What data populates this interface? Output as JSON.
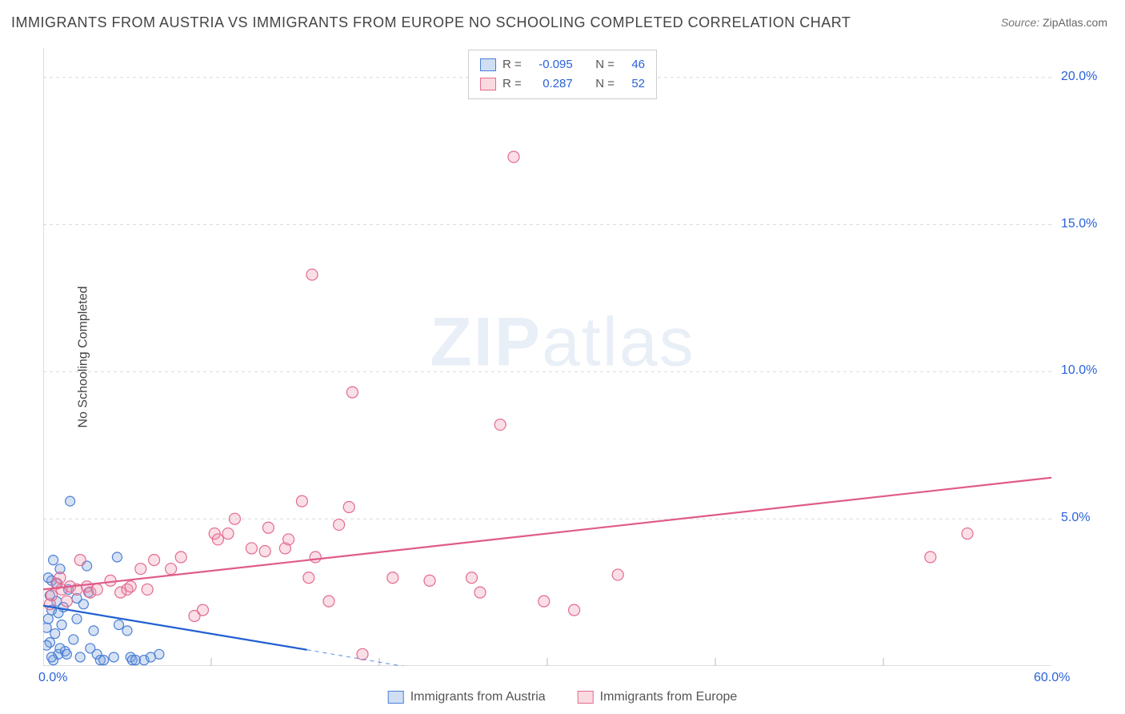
{
  "title": "IMMIGRANTS FROM AUSTRIA VS IMMIGRANTS FROM EUROPE NO SCHOOLING COMPLETED CORRELATION CHART",
  "source_label": "Source:",
  "source_value": "ZipAtlas.com",
  "ylabel": "No Schooling Completed",
  "watermark_a": "ZIP",
  "watermark_b": "atlas",
  "legend_top": {
    "rows": [
      {
        "swatch": "blue",
        "r_label": "R =",
        "r_value": "-0.095",
        "n_label": "N =",
        "n_value": "46"
      },
      {
        "swatch": "pink",
        "r_label": "R =",
        "r_value": "0.287",
        "n_label": "N =",
        "n_value": "52"
      }
    ]
  },
  "legend_bottom": {
    "items": [
      {
        "swatch": "blue",
        "label": "Immigrants from Austria"
      },
      {
        "swatch": "pink",
        "label": "Immigrants from Europe"
      }
    ]
  },
  "chart": {
    "type": "scatter",
    "xlim": [
      0,
      60
    ],
    "ylim": [
      0,
      21
    ],
    "x_ticks_minor": [
      10,
      20,
      30,
      40,
      50
    ],
    "x_ticks_labeled": [
      {
        "v": 0,
        "label": "0.0%"
      },
      {
        "v": 60,
        "label": "60.0%"
      }
    ],
    "y_gridlines": [
      5,
      10,
      15,
      20
    ],
    "y_ticks_labeled": [
      {
        "v": 5,
        "label": "5.0%"
      },
      {
        "v": 10,
        "label": "10.0%"
      },
      {
        "v": 15,
        "label": "15.0%"
      },
      {
        "v": 20,
        "label": "20.0%"
      }
    ],
    "grid_color": "#d9d9d9",
    "grid_dash": "4 4",
    "axis_color": "#bbbbbb",
    "background": "#ffffff",
    "marker_radius": 7,
    "marker_radius_small": 6,
    "marker_stroke_width": 1.2,
    "fontsize_ticks": 16,
    "series": [
      {
        "name": "austria",
        "fill": "rgba(120,160,220,0.30)",
        "stroke": "#4a7fd6",
        "points": [
          [
            0.4,
            2.4
          ],
          [
            0.6,
            3.6
          ],
          [
            0.8,
            2.2
          ],
          [
            0.3,
            1.6
          ],
          [
            0.5,
            2.9
          ],
          [
            0.7,
            1.1
          ],
          [
            0.4,
            0.8
          ],
          [
            0.9,
            0.4
          ],
          [
            1.0,
            3.3
          ],
          [
            1.2,
            2.0
          ],
          [
            1.3,
            0.5
          ],
          [
            1.6,
            5.6
          ],
          [
            1.5,
            2.6
          ],
          [
            1.8,
            0.9
          ],
          [
            2.0,
            1.6
          ],
          [
            2.2,
            0.3
          ],
          [
            2.6,
            3.4
          ],
          [
            2.4,
            2.1
          ],
          [
            2.7,
            2.5
          ],
          [
            3.0,
            1.2
          ],
          [
            3.2,
            0.4
          ],
          [
            3.4,
            0.2
          ],
          [
            3.6,
            0.2
          ],
          [
            4.2,
            0.3
          ],
          [
            4.4,
            3.7
          ],
          [
            4.5,
            1.4
          ],
          [
            5.0,
            1.2
          ],
          [
            5.2,
            0.3
          ],
          [
            5.3,
            0.2
          ],
          [
            5.5,
            0.2
          ],
          [
            6.0,
            0.2
          ],
          [
            6.4,
            0.3
          ],
          [
            6.9,
            0.4
          ],
          [
            1.0,
            0.6
          ],
          [
            0.6,
            0.2
          ],
          [
            0.2,
            0.7
          ],
          [
            0.2,
            1.3
          ],
          [
            0.5,
            1.9
          ],
          [
            0.3,
            3.0
          ],
          [
            0.8,
            2.8
          ],
          [
            1.1,
            1.4
          ],
          [
            0.9,
            1.8
          ],
          [
            1.4,
            0.4
          ],
          [
            2.0,
            2.3
          ],
          [
            2.8,
            0.6
          ],
          [
            0.5,
            0.3
          ]
        ],
        "trend": {
          "x1": 0,
          "y1": 2.05,
          "x2": 15.7,
          "y2": 0.55,
          "color": "#1f5fd0",
          "width": 2.2,
          "dash_ext_to": 27.5,
          "dash_y2": -0.6
        }
      },
      {
        "name": "europe",
        "fill": "rgba(240,150,175,0.30)",
        "stroke": "#e26b8f",
        "points": [
          [
            0.5,
            2.4
          ],
          [
            0.8,
            2.8
          ],
          [
            1.1,
            2.6
          ],
          [
            1.4,
            2.2
          ],
          [
            1.0,
            3.0
          ],
          [
            1.6,
            2.7
          ],
          [
            2.0,
            2.6
          ],
          [
            2.2,
            3.6
          ],
          [
            2.6,
            2.7
          ],
          [
            2.8,
            2.5
          ],
          [
            3.2,
            2.6
          ],
          [
            4.0,
            2.9
          ],
          [
            4.6,
            2.5
          ],
          [
            5.0,
            2.6
          ],
          [
            5.2,
            2.7
          ],
          [
            5.8,
            3.3
          ],
          [
            6.2,
            2.6
          ],
          [
            6.6,
            3.6
          ],
          [
            7.6,
            3.3
          ],
          [
            8.2,
            3.7
          ],
          [
            9.0,
            1.7
          ],
          [
            9.5,
            1.9
          ],
          [
            10.2,
            4.5
          ],
          [
            10.4,
            4.3
          ],
          [
            11.0,
            4.5
          ],
          [
            11.4,
            5.0
          ],
          [
            12.4,
            4.0
          ],
          [
            13.2,
            3.9
          ],
          [
            13.4,
            4.7
          ],
          [
            14.4,
            4.0
          ],
          [
            14.6,
            4.3
          ],
          [
            15.4,
            5.6
          ],
          [
            15.8,
            3.0
          ],
          [
            16.0,
            13.3
          ],
          [
            16.2,
            3.7
          ],
          [
            17.0,
            2.2
          ],
          [
            17.6,
            4.8
          ],
          [
            18.4,
            9.3
          ],
          [
            18.2,
            5.4
          ],
          [
            19.0,
            0.4
          ],
          [
            20.8,
            3.0
          ],
          [
            23.0,
            2.9
          ],
          [
            25.5,
            3.0
          ],
          [
            26.0,
            2.5
          ],
          [
            27.2,
            8.2
          ],
          [
            28.0,
            17.3
          ],
          [
            29.8,
            2.2
          ],
          [
            31.6,
            1.9
          ],
          [
            34.2,
            3.1
          ],
          [
            52.8,
            3.7
          ],
          [
            55.0,
            4.5
          ],
          [
            0.4,
            2.1
          ]
        ],
        "trend": {
          "x1": 0,
          "y1": 2.6,
          "x2": 60,
          "y2": 6.4,
          "color": "#e05b87",
          "width": 2.2
        }
      }
    ]
  }
}
